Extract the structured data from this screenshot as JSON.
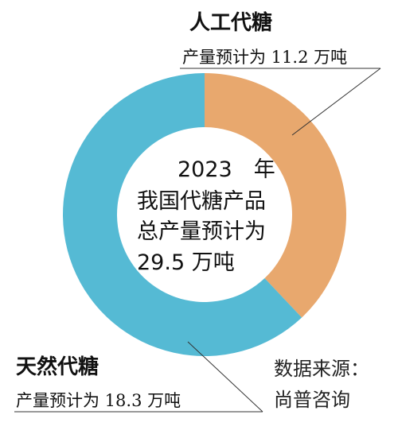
{
  "chart_data": {
    "type": "pie",
    "unit": "万吨",
    "center_text": {
      "line1": "2023　年",
      "line2": "我国代糖产品",
      "line3": "总产量预计为",
      "line4": "29.5 万吨"
    },
    "slices": [
      {
        "name": "人工代糖",
        "label": "产量预计为 11.2 万吨",
        "value": 11.2,
        "color": "#E8A86E"
      },
      {
        "name": "天然代糖",
        "label": "产量预计为 18.3 万吨",
        "value": 18.3,
        "color": "#55BAD4"
      }
    ],
    "total": 29.5
  },
  "source": {
    "line1": "数据来源：",
    "line2": "尚普咨询"
  }
}
